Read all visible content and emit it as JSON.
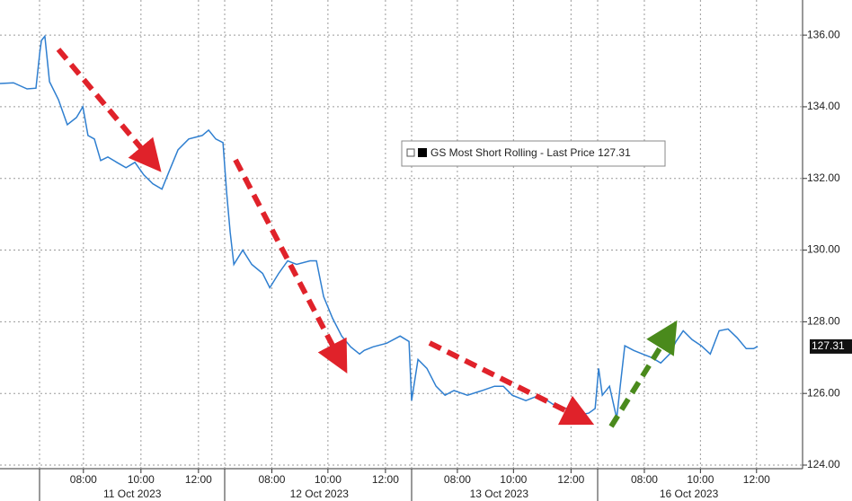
{
  "chart_data": {
    "type": "line",
    "x": [
      0,
      0.47,
      0.94,
      1.25,
      1.38,
      1.44,
      1.56,
      1.72,
      2.03,
      2.34,
      2.66,
      2.88,
      3.06,
      3.28,
      3.5,
      3.75,
      4.06,
      4.38,
      4.69,
      5,
      5.31,
      5.63,
      5.88,
      6.19,
      6.56,
      7.03,
      7.25,
      7.5,
      7.75,
      7.88,
      8,
      8.13,
      8.44,
      8.75,
      9.13,
      9.38,
      9.69,
      10,
      10.31,
      10.78,
      11,
      11.25,
      11.56,
      11.88,
      12.19,
      12.5,
      12.66,
      12.97,
      13.44,
      13.91,
      14.22,
      14.31,
      14.53,
      14.84,
      15.16,
      15.47,
      15.78,
      16.25,
      16.72,
      17.19,
      17.5,
      17.81,
      18.28,
      18.75,
      19.22,
      19.69,
      20.16,
      20.47,
      20.69,
      20.81,
      20.94,
      21.19,
      21.44,
      21.56,
      21.72,
      22.03,
      22.34,
      22.66,
      22.97,
      23.28,
      23.5,
      23.75,
      24.06,
      24.38,
      24.69,
      25,
      25.31,
      25.63,
      25.94,
      26.19,
      26.34
    ],
    "series": [
      {
        "name": "GS Most Short Rolling - Last Price",
        "color": "#2f7fd0",
        "values": [
          134.65,
          134.67,
          134.5,
          134.52,
          135.5,
          135.85,
          135.97,
          134.7,
          134.2,
          133.5,
          133.7,
          134.0,
          133.2,
          133.1,
          132.5,
          132.6,
          132.45,
          132.3,
          132.45,
          132.1,
          131.85,
          131.7,
          132.2,
          132.8,
          133.1,
          133.2,
          133.35,
          133.1,
          133.0,
          131.6,
          130.5,
          129.6,
          130.0,
          129.6,
          129.35,
          128.95,
          129.35,
          129.7,
          129.6,
          129.7,
          129.7,
          128.7,
          128.1,
          127.6,
          127.3,
          127.1,
          127.2,
          127.3,
          127.4,
          127.6,
          127.45,
          125.8,
          126.95,
          126.7,
          126.2,
          125.95,
          126.08,
          125.95,
          126.07,
          126.2,
          126.2,
          125.95,
          125.8,
          125.95,
          125.7,
          125.58,
          125.4,
          125.45,
          125.58,
          126.7,
          125.95,
          126.2,
          125.3,
          126.2,
          127.33,
          127.2,
          127.1,
          127.0,
          126.85,
          127.1,
          127.45,
          127.75,
          127.5,
          127.33,
          127.1,
          127.75,
          127.8,
          127.55,
          127.25,
          127.25,
          127.31
        ]
      }
    ],
    "last_price": {
      "value": 127.31,
      "label": "127.31"
    },
    "xlim": [
      0,
      27.9
    ],
    "xticks": [
      {
        "value": 2.9,
        "label": "08:00"
      },
      {
        "value": 4.9,
        "label": "10:00"
      },
      {
        "value": 6.9,
        "label": "12:00"
      },
      {
        "value": 9.45,
        "label": "08:00"
      },
      {
        "value": 11.4,
        "label": "10:00"
      },
      {
        "value": 13.4,
        "label": "12:00"
      },
      {
        "value": 15.9,
        "label": "08:00"
      },
      {
        "value": 17.85,
        "label": "10:00"
      },
      {
        "value": 19.85,
        "label": "12:00"
      },
      {
        "value": 22.4,
        "label": "08:00"
      },
      {
        "value": 24.35,
        "label": "10:00"
      },
      {
        "value": 26.3,
        "label": "12:00"
      }
    ],
    "day_ticks": [
      {
        "value": 4.6,
        "label": "11 Oct 2023"
      },
      {
        "value": 11.1,
        "label": "12 Oct 2023"
      },
      {
        "value": 17.35,
        "label": "13 Oct 2023"
      },
      {
        "value": 23.95,
        "label": "16 Oct 2023"
      }
    ],
    "ylim": [
      123.9,
      136.98
    ],
    "yticks": [
      {
        "value": 124,
        "label": "124.00"
      },
      {
        "value": 126,
        "label": "126.00"
      },
      {
        "value": 128,
        "label": "128.00"
      },
      {
        "value": 130,
        "label": "130.00"
      },
      {
        "value": 132,
        "label": "132.00"
      },
      {
        "value": 134,
        "label": "134.00"
      },
      {
        "value": 136,
        "label": "136.00"
      }
    ],
    "grid": true
  }
}
